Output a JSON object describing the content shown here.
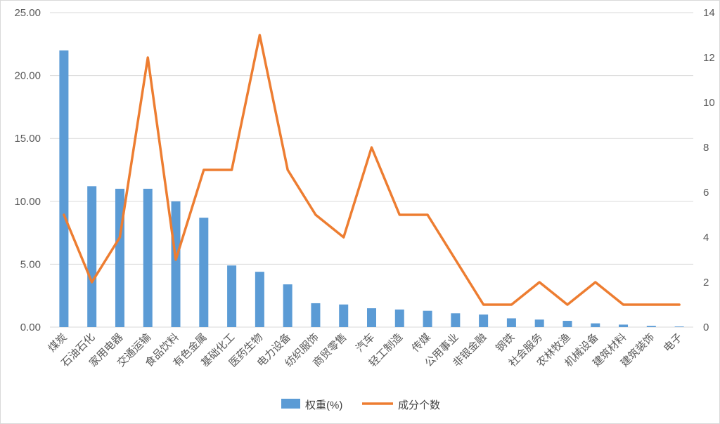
{
  "chart_data": {
    "type": "bar",
    "subtype": "bar-line-combo",
    "title": "",
    "categories": [
      "煤炭",
      "石油石化",
      "家用电器",
      "交通运输",
      "食品饮料",
      "有色金属",
      "基础化工",
      "医药生物",
      "电力设备",
      "纺织服饰",
      "商贸零售",
      "汽车",
      "轻工制造",
      "传媒",
      "公用事业",
      "非银金融",
      "钢铁",
      "社会服务",
      "农林牧渔",
      "机械设备",
      "建筑材料",
      "建筑装饰",
      "电子"
    ],
    "series": [
      {
        "name": "权重(%)",
        "type": "bar",
        "axis": "left",
        "color": "#5b9bd5",
        "values": [
          22.0,
          11.2,
          11.0,
          11.0,
          10.0,
          8.7,
          4.9,
          4.4,
          3.4,
          1.9,
          1.8,
          1.5,
          1.4,
          1.3,
          1.1,
          1.0,
          0.7,
          0.6,
          0.5,
          0.3,
          0.2,
          0.1,
          0.05
        ]
      },
      {
        "name": "成分个数",
        "type": "line",
        "axis": "right",
        "color": "#ed7d31",
        "values": [
          5,
          2,
          4,
          12,
          3,
          7,
          7,
          13,
          7,
          5,
          4,
          8,
          5,
          5,
          3,
          1,
          1,
          2,
          1,
          2,
          1,
          1,
          1
        ]
      }
    ],
    "left_axis": {
      "min": 0,
      "max": 25,
      "step": 5,
      "tick_format": "2dp"
    },
    "right_axis": {
      "min": 0,
      "max": 14,
      "step": 2
    },
    "grid": true,
    "gridline_color": "#d9d9d9",
    "legend_position": "bottom"
  },
  "legend": {
    "bar_label": "权重(%)",
    "line_label": "成分个数"
  }
}
